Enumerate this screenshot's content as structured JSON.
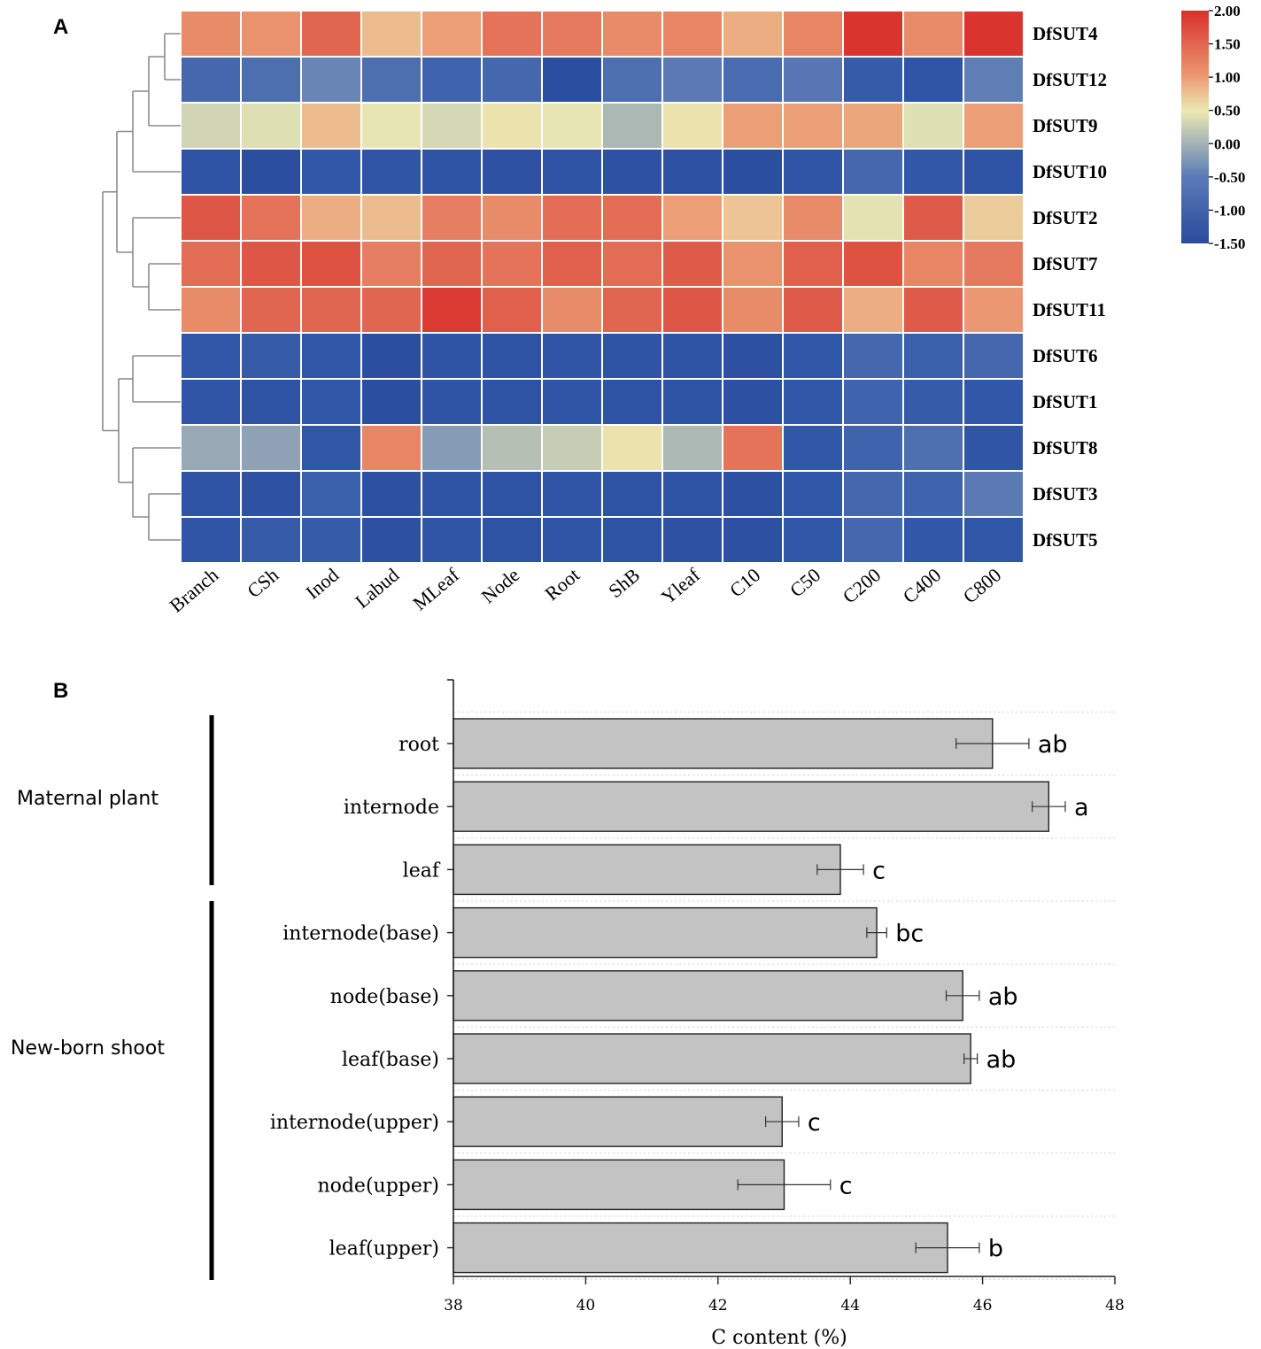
{
  "chart_data": [
    {
      "panel": "A",
      "type": "heatmap",
      "rows": [
        "DfSUT4",
        "DfSUT12",
        "DfSUT9",
        "DfSUT10",
        "DfSUT2",
        "DfSUT7",
        "DfSUT11",
        "DfSUT6",
        "DfSUT1",
        "DfSUT8",
        "DfSUT3",
        "DfSUT5"
      ],
      "columns": [
        "Branch",
        "CSh",
        "Inod",
        "Labud",
        "MLeaf",
        "Node",
        "Root",
        "ShB",
        "Yleaf",
        "C10",
        "C50",
        "C200",
        "C400",
        "C800"
      ],
      "values": [
        [
          1.15,
          1.1,
          1.45,
          0.8,
          1.0,
          1.35,
          1.3,
          1.15,
          1.2,
          0.9,
          1.2,
          1.95,
          1.15,
          1.95
        ],
        [
          -0.8,
          -0.7,
          -0.45,
          -0.7,
          -0.85,
          -0.8,
          -1.35,
          -0.7,
          -0.55,
          -0.75,
          -0.6,
          -0.95,
          -1.1,
          -0.5
        ],
        [
          0.2,
          0.35,
          0.8,
          0.45,
          0.25,
          0.55,
          0.45,
          -0.1,
          0.55,
          1.0,
          1.0,
          0.95,
          0.35,
          1.0
        ],
        [
          -1.2,
          -1.35,
          -1.0,
          -1.1,
          -1.15,
          -1.25,
          -1.15,
          -1.25,
          -1.25,
          -1.35,
          -1.1,
          -0.8,
          -1.0,
          -1.15
        ],
        [
          1.6,
          1.35,
          0.9,
          0.8,
          1.25,
          1.15,
          1.4,
          1.4,
          1.0,
          0.75,
          1.15,
          0.4,
          1.55,
          0.7
        ],
        [
          1.4,
          1.6,
          1.65,
          1.25,
          1.45,
          1.35,
          1.5,
          1.4,
          1.55,
          1.1,
          1.5,
          1.65,
          1.2,
          1.3
        ],
        [
          1.15,
          1.45,
          1.45,
          1.45,
          1.9,
          1.5,
          1.15,
          1.45,
          1.6,
          1.15,
          1.55,
          0.9,
          1.55,
          1.05
        ],
        [
          -1.05,
          -0.95,
          -1.05,
          -1.35,
          -1.15,
          -1.2,
          -1.1,
          -1.15,
          -1.2,
          -1.3,
          -1.05,
          -0.8,
          -0.9,
          -0.8
        ],
        [
          -1.1,
          -1.2,
          -1.05,
          -1.35,
          -1.15,
          -1.2,
          -1.1,
          -1.2,
          -1.2,
          -1.3,
          -1.05,
          -0.85,
          -0.95,
          -1.0
        ],
        [
          -0.2,
          -0.25,
          -1.05,
          1.2,
          -0.3,
          -0.05,
          0.1,
          0.55,
          -0.1,
          1.35,
          -1.0,
          -0.85,
          -0.7,
          -1.1
        ],
        [
          -1.15,
          -1.25,
          -0.9,
          -1.3,
          -1.15,
          -1.2,
          -1.1,
          -1.2,
          -1.2,
          -1.3,
          -1.0,
          -0.8,
          -0.85,
          -0.55
        ],
        [
          -1.1,
          -0.95,
          -0.95,
          -1.3,
          -1.1,
          -1.2,
          -1.1,
          -1.2,
          -1.25,
          -1.3,
          -1.0,
          -0.8,
          -1.0,
          -1.05
        ]
      ],
      "colorbar": {
        "ticks": [
          "2.00",
          "1.50",
          "1.00",
          "0.50",
          "0.00",
          "-0.50",
          "-1.00",
          "-1.50"
        ],
        "range": [
          -1.5,
          2.0
        ],
        "colors": [
          "#2a4a9e",
          "#ece9b3",
          "#d8302b"
        ]
      },
      "dendrogram": "rows clustered"
    },
    {
      "panel": "B",
      "type": "bar",
      "orientation": "horizontal",
      "categories": [
        "root",
        "internode",
        "leaf",
        "internode(base)",
        "node(base)",
        "leaf(base)",
        "internode(upper)",
        "node(upper)",
        "leaf(upper)"
      ],
      "values": [
        46.15,
        47.0,
        43.85,
        44.4,
        45.7,
        45.82,
        42.97,
        43.0,
        45.47
      ],
      "errors": [
        0.55,
        0.25,
        0.35,
        0.15,
        0.25,
        0.1,
        0.25,
        0.7,
        0.48
      ],
      "significance": [
        "ab",
        "a",
        "c",
        "bc",
        "ab",
        "ab",
        "c",
        "c",
        "b"
      ],
      "groups": [
        {
          "name": "Maternal plant",
          "members": [
            "root",
            "internode",
            "leaf"
          ]
        },
        {
          "name": "New-born shoot",
          "members": [
            "internode(base)",
            "node(base)",
            "leaf(base)",
            "internode(upper)",
            "node(upper)",
            "leaf(upper)"
          ]
        }
      ],
      "xlim": [
        38,
        48
      ],
      "xticks": [
        38,
        40,
        42,
        44,
        46,
        48
      ],
      "xlabel": "C content (%)",
      "bar_color": "#c4c3c4",
      "grid": "dotted horizontal"
    }
  ],
  "panel_labels": [
    "A",
    "B"
  ]
}
